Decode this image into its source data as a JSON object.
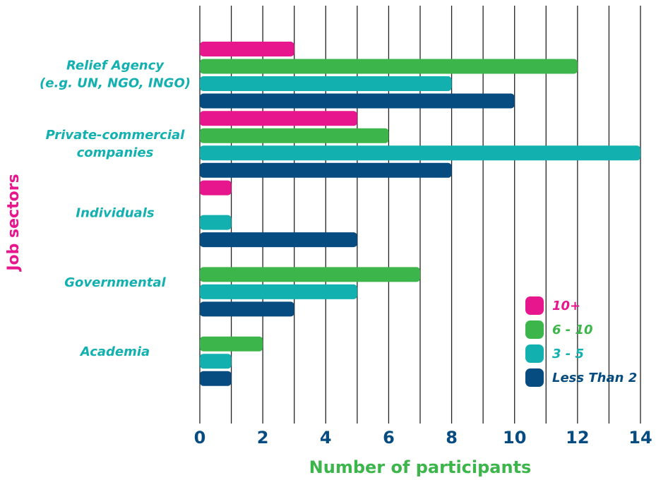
{
  "chart_data": {
    "type": "barh",
    "xlabel": "Number of participants",
    "ylabel": "Job sectors",
    "categories": [
      [
        "Relief Agency",
        "(e.g. UN, NGO, INGO)"
      ],
      [
        "Private-commercial",
        "companies"
      ],
      [
        "Individuals"
      ],
      [
        "Governmental"
      ],
      [
        "Academia"
      ]
    ],
    "series": [
      {
        "name": "10+",
        "color": "#e8168c",
        "values": [
          3,
          5,
          1,
          0,
          0
        ]
      },
      {
        "name": "6 - 10",
        "color": "#3cb54a",
        "values": [
          12,
          6,
          0,
          7,
          2
        ]
      },
      {
        "name": "3 - 5",
        "color": "#13b0b0",
        "values": [
          8,
          14,
          1,
          5,
          1
        ]
      },
      {
        "name": "Less Than 2",
        "color": "#064c80",
        "values": [
          10,
          8,
          5,
          3,
          1
        ]
      }
    ],
    "xlim": [
      0,
      14
    ],
    "xticks": [
      0,
      2,
      4,
      6,
      8,
      10,
      12,
      14
    ],
    "minor_xticks": [
      1,
      3,
      5,
      7,
      9,
      11,
      13
    ],
    "grid": true,
    "legend": "lower right"
  }
}
